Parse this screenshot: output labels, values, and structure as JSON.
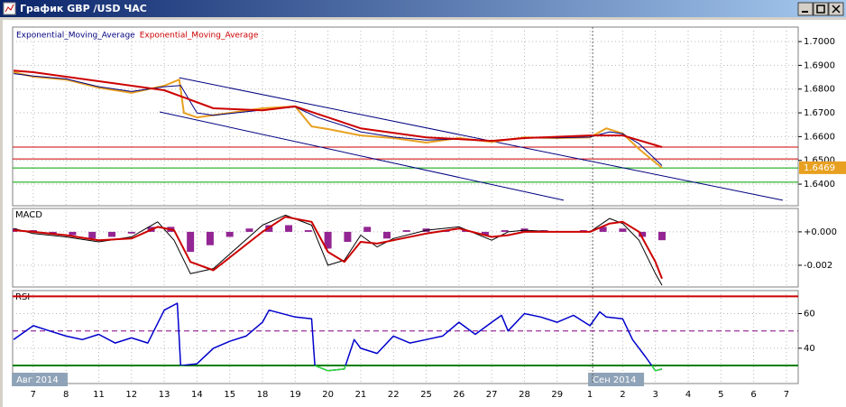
{
  "window_title": "График GBP /USD ЧАС",
  "chart_data": [
    {
      "type": "line",
      "grid": true,
      "xlim": [
        -0.63,
        23.36
      ],
      "xticks": [
        {
          "value": 0,
          "label": "7"
        },
        {
          "value": 1,
          "label": "8"
        },
        {
          "value": 2,
          "label": "11"
        },
        {
          "value": 3,
          "label": "12"
        },
        {
          "value": 4,
          "label": "13"
        },
        {
          "value": 5,
          "label": "14"
        },
        {
          "value": 6,
          "label": "15"
        },
        {
          "value": 7,
          "label": "18"
        },
        {
          "value": 8,
          "label": "19"
        },
        {
          "value": 9,
          "label": "20"
        },
        {
          "value": 10,
          "label": "21"
        },
        {
          "value": 11,
          "label": "22"
        },
        {
          "value": 12,
          "label": "25"
        },
        {
          "value": 13,
          "label": "26"
        },
        {
          "value": 14,
          "label": "27"
        },
        {
          "value": 15,
          "label": "28"
        },
        {
          "value": 16,
          "label": "29"
        },
        {
          "value": 17,
          "label": "1"
        },
        {
          "value": 18,
          "label": "2"
        },
        {
          "value": 19,
          "label": "3"
        },
        {
          "value": 20,
          "label": "4"
        },
        {
          "value": 21,
          "label": "5"
        },
        {
          "value": 22,
          "label": "6"
        },
        {
          "value": 23,
          "label": "7"
        }
      ],
      "period_labels": [
        {
          "value": -0.6,
          "label": "Авг 2014"
        },
        {
          "value": 17,
          "label": "Сен 2014"
        }
      ],
      "ylim": [
        1.6309,
        1.7061
      ],
      "yticks": [
        {
          "value": 1.7,
          "label": "1.7000"
        },
        {
          "value": 1.69,
          "label": "1.6900"
        },
        {
          "value": 1.68,
          "label": "1.6800"
        },
        {
          "value": 1.67,
          "label": "1.6700"
        },
        {
          "value": 1.66,
          "label": "1.6600"
        },
        {
          "value": 1.65,
          "label": "1.6500"
        },
        {
          "value": 1.64,
          "label": "1.6400"
        }
      ],
      "color": "#e8a020",
      "x": [
        -0.6,
        0,
        1,
        2,
        3,
        4,
        4.46,
        4.6,
        5,
        6,
        7,
        8,
        8.5,
        9,
        10,
        11,
        12,
        13,
        14,
        15,
        16,
        17,
        17.5,
        18,
        18.5,
        19,
        19.2
      ],
      "values": [
        1.6871,
        1.6852,
        1.684,
        1.6806,
        1.6784,
        1.6814,
        1.684,
        1.67,
        1.6681,
        1.67,
        1.6719,
        1.6727,
        1.6643,
        1.6632,
        1.6605,
        1.6594,
        1.6575,
        1.6594,
        1.6578,
        1.6597,
        1.6594,
        1.6597,
        1.6635,
        1.6613,
        1.6548,
        1.6491,
        1.6469
      ],
      "last_price": 1.6469,
      "series": [
        {
          "name": "Exponential_Moving_Average",
          "color": "#000080",
          "x": [
            -0.6,
            0,
            1,
            2,
            3,
            4,
            4.5,
            5,
            5.5,
            7,
            8,
            8.7,
            9.5,
            10,
            11,
            12,
            13,
            14,
            15,
            16,
            17,
            17.6,
            18,
            18.5,
            19.2
          ],
          "values": [
            1.6865,
            1.6855,
            1.6843,
            1.681,
            1.679,
            1.681,
            1.6815,
            1.67,
            1.669,
            1.6712,
            1.6725,
            1.668,
            1.6645,
            1.662,
            1.6598,
            1.6585,
            1.659,
            1.6583,
            1.6595,
            1.6595,
            1.6598,
            1.662,
            1.6612,
            1.657,
            1.6478
          ]
        },
        {
          "name": "Exponential_Moving_Average",
          "color": "#cc0000",
          "x": [
            -0.6,
            0,
            2,
            4,
            4.6,
            5.5,
            7,
            8,
            9,
            10,
            12,
            14,
            15,
            17,
            18,
            19.2
          ],
          "values": [
            1.6878,
            1.6871,
            1.6833,
            1.6795,
            1.6765,
            1.6719,
            1.6711,
            1.6727,
            1.6681,
            1.6635,
            1.6597,
            1.6582,
            1.6594,
            1.6605,
            1.6605,
            1.6556
          ]
        }
      ],
      "levels": [
        {
          "value": 1.6556,
          "color": "#cc0000"
        },
        {
          "value": 1.6506,
          "color": "#cc0000"
        },
        {
          "value": 1.6468,
          "color": "#00a000"
        },
        {
          "value": 1.6408,
          "color": "#00a000"
        }
      ],
      "channels": [
        {
          "x": [
            4.46,
            22.89
          ],
          "values": [
            1.6848,
            1.6332
          ]
        },
        {
          "x": [
            3.86,
            16.2
          ],
          "values": [
            1.6704,
            1.6332
          ]
        }
      ],
      "channel_color": "#000080"
    },
    {
      "type": "macd",
      "title": "MACD",
      "grid": true,
      "ylim": [
        -0.0033,
        0.0014
      ],
      "yticks": [
        {
          "value": 0,
          "label": "+0.000"
        },
        {
          "value": -0.002,
          "label": "-0.002"
        }
      ],
      "histogram": {
        "color": "#800080",
        "x": [
          -0.6,
          0,
          0.6,
          1.2,
          1.8,
          2.4,
          3.0,
          3.6,
          4.2,
          4.8,
          5.4,
          6.0,
          6.6,
          7.2,
          7.8,
          8.4,
          9.0,
          9.6,
          10.2,
          10.8,
          11.4,
          12.0,
          12.6,
          13.2,
          13.8,
          14.4,
          15.0,
          15.6,
          16.2,
          16.8,
          17.4,
          18.0,
          18.6,
          19.2
        ],
        "values": [
          0.0002,
          0.0001,
          -0.0001,
          -0.0002,
          -0.0004,
          -0.0003,
          -0.0001,
          0.0003,
          0.0003,
          -0.0012,
          -0.0008,
          -0.0003,
          0.0002,
          0.0004,
          0.0004,
          0.0001,
          -0.001,
          -0.0006,
          0.0003,
          -0.0004,
          0.0001,
          0.0002,
          0.0001,
          0.0001,
          -0.0002,
          0.0001,
          0.0002,
          0.0001,
          0,
          0.0001,
          0.0003,
          0.0002,
          -0.0003,
          -0.0005
        ]
      },
      "x": [
        -0.6,
        0,
        1,
        2,
        3,
        3.8,
        4.3,
        4.8,
        5.5,
        7,
        7.7,
        8.5,
        9,
        9.5,
        10,
        10.5,
        11,
        12,
        13,
        14,
        14.5,
        15,
        16,
        17,
        17.6,
        18,
        18.5,
        19,
        19.2
      ],
      "lines": [
        {
          "color": "#000000",
          "values": [
            0.0002,
            -0.0001,
            -0.0003,
            -0.0006,
            -0.0003,
            0.0006,
            -0.0005,
            -0.0025,
            -0.0022,
            0.0004,
            0.001,
            0.0004,
            -0.002,
            -0.0017,
            -0.0002,
            -0.0009,
            -0.0004,
            0.0001,
            0.0003,
            -0.0005,
            0,
            0.0001,
            0,
            0,
            0.0008,
            0.0005,
            -0.0005,
            -0.0025,
            -0.0032
          ]
        },
        {
          "color": "#cc0000",
          "values": [
            0.0001,
            0,
            -0.0002,
            -0.0005,
            -0.0004,
            0.0003,
            0.0001,
            -0.0018,
            -0.0023,
            0,
            0.0009,
            0.0006,
            -0.0012,
            -0.0018,
            -0.0006,
            -0.0007,
            -0.0005,
            -0.0001,
            0.0002,
            -0.0003,
            -0.0002,
            0,
            0,
            0,
            0.0005,
            0.0006,
            0,
            -0.0018,
            -0.0028
          ]
        }
      ]
    },
    {
      "type": "rsi",
      "title": "RSI",
      "grid": true,
      "ylim": [
        19.6,
        73.3
      ],
      "yticks": [
        60,
        40
      ],
      "color": "#0000cc",
      "oversold_color": "#33dd33",
      "x": [
        -0.6,
        0,
        0.5,
        1,
        1.5,
        2,
        2.5,
        3,
        3.5,
        4,
        4.4,
        4.5,
        5,
        5.5,
        6,
        6.5,
        7,
        7.2,
        8,
        8.5,
        8.6,
        9,
        9.5,
        9.8,
        10,
        10.5,
        11,
        11.5,
        12,
        12.5,
        13,
        13.5,
        14,
        14.3,
        14.5,
        15,
        15.5,
        16,
        16.5,
        17,
        17.3,
        17.5,
        18,
        18.3,
        18.7,
        19,
        19.2
      ],
      "values": [
        45,
        53,
        50,
        47,
        45,
        48,
        43,
        46,
        43,
        62,
        66,
        30,
        31,
        40,
        44,
        47,
        55,
        62,
        58,
        57,
        30,
        27,
        28,
        45,
        40,
        37,
        47,
        43,
        45,
        47,
        55,
        48,
        55,
        59,
        50,
        60,
        58,
        55,
        59,
        53,
        61,
        58,
        57,
        45,
        35,
        27,
        28
      ],
      "levels": [
        {
          "value": 70,
          "color": "#cc0000",
          "dash": false
        },
        {
          "value": 50,
          "color": "#800080",
          "dash": true
        },
        {
          "value": 30,
          "color": "#008000",
          "dash": false
        }
      ]
    }
  ]
}
